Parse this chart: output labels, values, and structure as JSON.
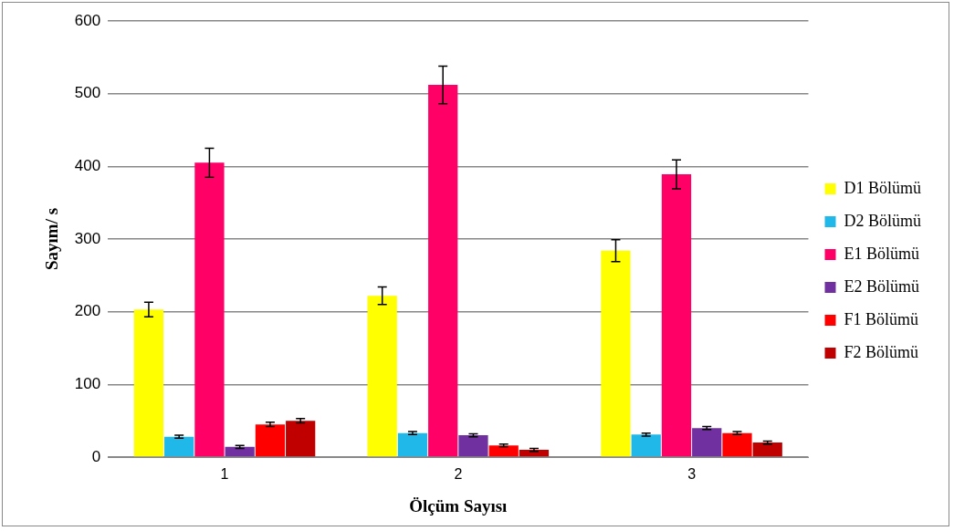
{
  "chart_data": {
    "type": "bar",
    "xlabel": "Ölçüm Sayısı",
    "ylabel": "Sayım/ s",
    "categories": [
      "1",
      "2",
      "3"
    ],
    "series": [
      {
        "name": "D1 Bölümü",
        "color": "#ffff00",
        "values": [
          203,
          222,
          284
        ],
        "errors": [
          10,
          12,
          15
        ]
      },
      {
        "name": "D2 Bölümü",
        "color": "#1fb8e8",
        "values": [
          28,
          33,
          31
        ],
        "errors": [
          2,
          2,
          2
        ]
      },
      {
        "name": "E1 Bölümü",
        "color": "#ff0066",
        "values": [
          405,
          512,
          389
        ],
        "errors": [
          20,
          26,
          20
        ]
      },
      {
        "name": "E2 Bölümü",
        "color": "#7030a0",
        "values": [
          14,
          30,
          40
        ],
        "errors": [
          2,
          2,
          2
        ]
      },
      {
        "name": "F1 Bölümü",
        "color": "#ff0000",
        "values": [
          45,
          16,
          33
        ],
        "errors": [
          3,
          2,
          2
        ]
      },
      {
        "name": "F2 Bölümü",
        "color": "#c00000",
        "values": [
          50,
          10,
          20
        ],
        "errors": [
          3,
          2,
          2
        ]
      }
    ],
    "ylim": [
      0,
      600
    ],
    "yticks": [
      0,
      100,
      200,
      300,
      400,
      500,
      600
    ],
    "grid": "y",
    "legend": "right"
  }
}
